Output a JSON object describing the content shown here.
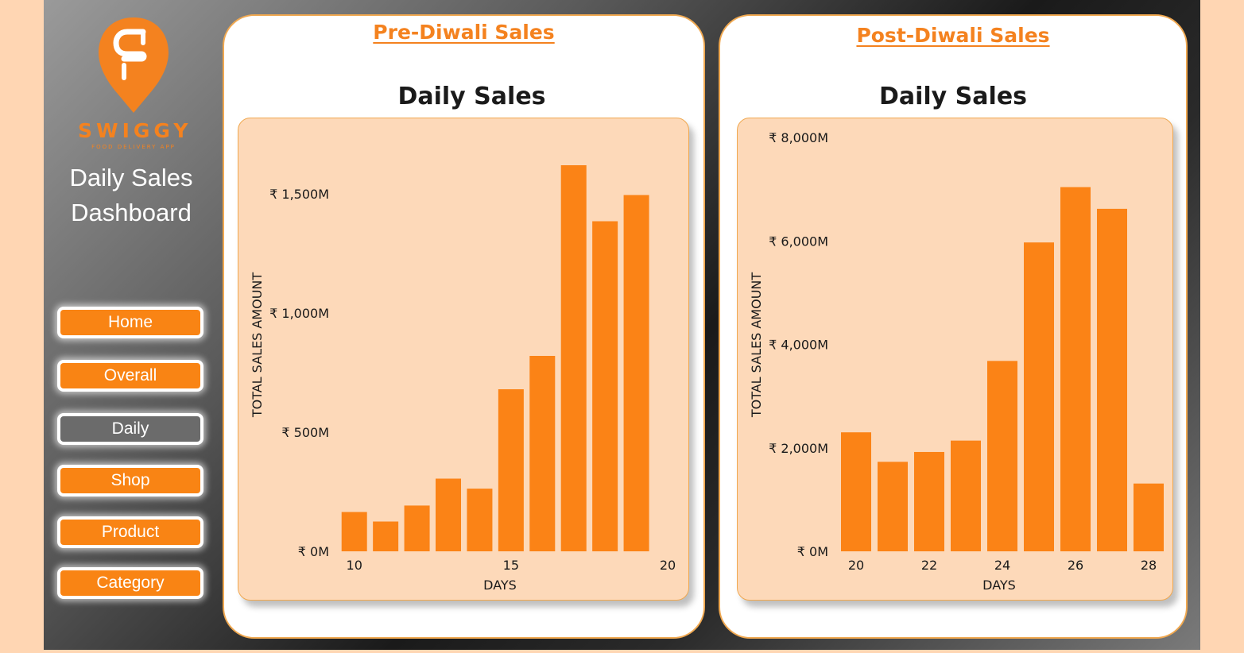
{
  "sidebar": {
    "logo_word": "SWIGGY",
    "logo_sub": "FOOD DELIVERY APP",
    "title_line1": "Daily Sales",
    "title_line2": "Dashboard",
    "nav": [
      {
        "label": "Home",
        "active": false
      },
      {
        "label": "Overall",
        "active": false
      },
      {
        "label": "Daily",
        "active": true
      },
      {
        "label": "Shop",
        "active": false
      },
      {
        "label": "Product",
        "active": false
      },
      {
        "label": "Category",
        "active": false
      }
    ]
  },
  "colors": {
    "accent": "#f98414",
    "plot_bg": "#fdd9b9",
    "bar": "#fb8316",
    "active_nav": "#6b6b6b"
  },
  "cards": {
    "pre": {
      "heading": "Pre-Diwali Sales"
    },
    "post": {
      "heading": "Post-Diwali Sales"
    }
  },
  "chart_data": [
    {
      "type": "bar",
      "title": "Daily Sales",
      "xlabel": "DAYS",
      "ylabel": "TOTAL SALES AMOUNT",
      "x": [
        10,
        11,
        12,
        13,
        14,
        15,
        16,
        17,
        18,
        19
      ],
      "values": [
        165,
        125,
        192,
        305,
        263,
        680,
        820,
        1620,
        1385,
        1495
      ],
      "unit": "M",
      "ylim": [
        0,
        1750
      ],
      "yticks": [
        0,
        500,
        1000,
        1500
      ],
      "ytick_labels": [
        "₹ 0M",
        "₹ 500M",
        "₹ 1,000M",
        "₹ 1,500M"
      ],
      "xticks": [
        10,
        15,
        20
      ],
      "xlim": [
        9.5,
        20
      ]
    },
    {
      "type": "bar",
      "title": "Daily Sales",
      "xlabel": "DAYS",
      "ylabel": "TOTAL SALES AMOUNT",
      "x": [
        20,
        21,
        22,
        23,
        24,
        25,
        26,
        27,
        28
      ],
      "values": [
        2300,
        1730,
        1920,
        2140,
        3680,
        5970,
        7040,
        6620,
        1310
      ],
      "unit": "M",
      "ylim": [
        0,
        8000
      ],
      "yticks": [
        0,
        2000,
        4000,
        6000,
        8000
      ],
      "ytick_labels": [
        "₹ 0M",
        "₹ 2,000M",
        "₹ 4,000M",
        "₹ 6,000M",
        "₹ 8,000M"
      ],
      "xticks": [
        20,
        22,
        24,
        26,
        28
      ],
      "xlim": [
        19.5,
        28.5
      ]
    }
  ]
}
